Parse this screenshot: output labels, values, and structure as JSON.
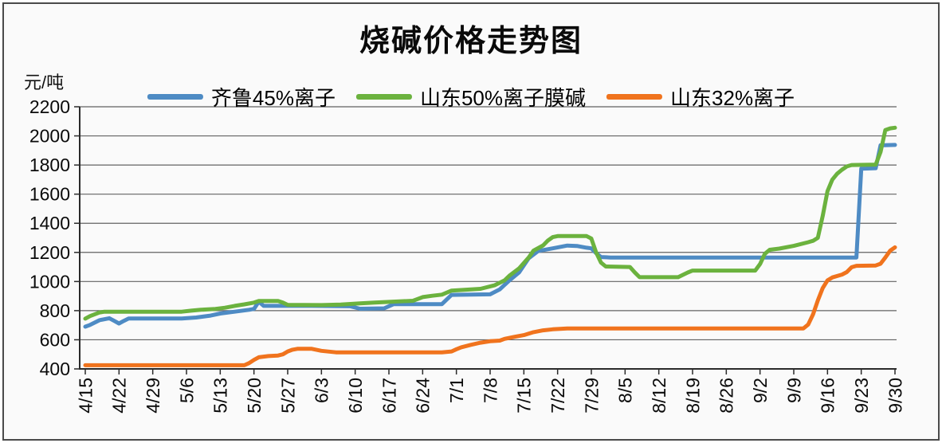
{
  "title": "烧碱价格走势图",
  "y_unit": "元/吨",
  "chart_data": {
    "type": "line",
    "title": "烧碱价格走势图",
    "ylabel": "元/吨",
    "xlabel": "",
    "ylim": [
      400,
      2200
    ],
    "ytick_step": 200,
    "grid": "horizontal",
    "legend_position": "top-center",
    "x_axis_note": "daily data, ticks every 7 days, x given as days since 4/15",
    "categories": [
      "4/15",
      "4/22",
      "4/29",
      "5/6",
      "5/13",
      "5/20",
      "5/27",
      "6/3",
      "6/10",
      "6/17",
      "6/24",
      "7/1",
      "7/8",
      "7/15",
      "7/22",
      "7/29",
      "8/5",
      "8/12",
      "8/19",
      "8/26",
      "9/2",
      "9/9",
      "9/16",
      "9/23",
      "9/30"
    ],
    "tick_interval_days": 7,
    "colors": {
      "grid": "#626262",
      "axis": "#2b2b2b",
      "text": "#0a0a0a"
    },
    "series": [
      {
        "id": "qilu-45-ion",
        "name": "齐鲁45%离子",
        "color": "#4E8BC4",
        "points": [
          [
            0,
            690
          ],
          [
            1,
            702
          ],
          [
            3,
            735
          ],
          [
            5,
            748
          ],
          [
            6,
            730
          ],
          [
            7,
            712
          ],
          [
            8,
            730
          ],
          [
            9,
            746
          ],
          [
            20,
            746
          ],
          [
            23,
            753
          ],
          [
            26,
            766
          ],
          [
            28,
            780
          ],
          [
            31,
            793
          ],
          [
            34,
            806
          ],
          [
            35,
            812
          ],
          [
            36,
            862
          ],
          [
            37,
            833
          ],
          [
            47,
            833
          ],
          [
            55,
            830
          ],
          [
            57,
            813
          ],
          [
            62,
            816
          ],
          [
            64,
            845
          ],
          [
            74,
            845
          ],
          [
            76,
            908
          ],
          [
            84,
            912
          ],
          [
            86,
            946
          ],
          [
            88,
            1008
          ],
          [
            90,
            1062
          ],
          [
            92,
            1160
          ],
          [
            94,
            1210
          ],
          [
            97,
            1228
          ],
          [
            100,
            1247
          ],
          [
            102,
            1244
          ],
          [
            104,
            1232
          ],
          [
            105,
            1228
          ],
          [
            106,
            1195
          ],
          [
            107,
            1168
          ],
          [
            109,
            1165
          ],
          [
            160,
            1165
          ],
          [
            161,
            1775
          ],
          [
            164,
            1778
          ],
          [
            165,
            1935
          ],
          [
            168,
            1938
          ]
        ]
      },
      {
        "id": "shandong-50-membrane",
        "name": "山东50%离子膜碱",
        "color": "#6BB23E",
        "points": [
          [
            0,
            745
          ],
          [
            1,
            763
          ],
          [
            3,
            788
          ],
          [
            4,
            793
          ],
          [
            20,
            793
          ],
          [
            22,
            800
          ],
          [
            24,
            806
          ],
          [
            27,
            812
          ],
          [
            29,
            820
          ],
          [
            31,
            833
          ],
          [
            33,
            843
          ],
          [
            35,
            855
          ],
          [
            36,
            866
          ],
          [
            40,
            866
          ],
          [
            41,
            855
          ],
          [
            42,
            840
          ],
          [
            49,
            838
          ],
          [
            53,
            842
          ],
          [
            57,
            850
          ],
          [
            60,
            856
          ],
          [
            68,
            868
          ],
          [
            70,
            893
          ],
          [
            72,
            902
          ],
          [
            74,
            910
          ],
          [
            76,
            938
          ],
          [
            82,
            950
          ],
          [
            85,
            975
          ],
          [
            87,
            1008
          ],
          [
            88,
            1040
          ],
          [
            90,
            1090
          ],
          [
            92,
            1165
          ],
          [
            93,
            1212
          ],
          [
            95,
            1248
          ],
          [
            96,
            1282
          ],
          [
            97,
            1305
          ],
          [
            98,
            1312
          ],
          [
            104,
            1312
          ],
          [
            105,
            1295
          ],
          [
            106,
            1200
          ],
          [
            107,
            1130
          ],
          [
            108,
            1103
          ],
          [
            113,
            1100
          ],
          [
            114,
            1063
          ],
          [
            115,
            1030
          ],
          [
            123,
            1030
          ],
          [
            125,
            1062
          ],
          [
            126,
            1075
          ],
          [
            139,
            1075
          ],
          [
            140,
            1120
          ],
          [
            141,
            1190
          ],
          [
            142,
            1218
          ],
          [
            144,
            1226
          ],
          [
            147,
            1245
          ],
          [
            150,
            1270
          ],
          [
            151,
            1280
          ],
          [
            152,
            1300
          ],
          [
            153,
            1450
          ],
          [
            154,
            1620
          ],
          [
            155,
            1700
          ],
          [
            156,
            1740
          ],
          [
            157,
            1768
          ],
          [
            158,
            1790
          ],
          [
            159,
            1800
          ],
          [
            164,
            1803
          ],
          [
            165,
            1890
          ],
          [
            166,
            2040
          ],
          [
            167,
            2052
          ],
          [
            168,
            2056
          ]
        ]
      },
      {
        "id": "shandong-32-ion",
        "name": "山东32%离子",
        "color": "#F0731D",
        "points": [
          [
            0,
            425
          ],
          [
            33,
            425
          ],
          [
            34,
            440
          ],
          [
            35,
            462
          ],
          [
            36,
            480
          ],
          [
            38,
            488
          ],
          [
            40,
            492
          ],
          [
            41,
            500
          ],
          [
            42,
            520
          ],
          [
            43,
            532
          ],
          [
            44,
            538
          ],
          [
            47,
            538
          ],
          [
            49,
            524
          ],
          [
            52,
            514
          ],
          [
            74,
            514
          ],
          [
            76,
            520
          ],
          [
            77,
            535
          ],
          [
            78,
            548
          ],
          [
            80,
            565
          ],
          [
            82,
            580
          ],
          [
            84,
            590
          ],
          [
            86,
            594
          ],
          [
            87,
            606
          ],
          [
            89,
            620
          ],
          [
            91,
            632
          ],
          [
            93,
            652
          ],
          [
            95,
            665
          ],
          [
            97,
            672
          ],
          [
            100,
            678
          ],
          [
            149,
            678
          ],
          [
            150,
            705
          ],
          [
            151,
            775
          ],
          [
            152,
            870
          ],
          [
            153,
            955
          ],
          [
            154,
            1008
          ],
          [
            155,
            1028
          ],
          [
            157,
            1048
          ],
          [
            158,
            1065
          ],
          [
            159,
            1098
          ],
          [
            160,
            1108
          ],
          [
            164,
            1110
          ],
          [
            165,
            1122
          ],
          [
            166,
            1165
          ],
          [
            167,
            1212
          ],
          [
            168,
            1235
          ]
        ]
      }
    ]
  }
}
